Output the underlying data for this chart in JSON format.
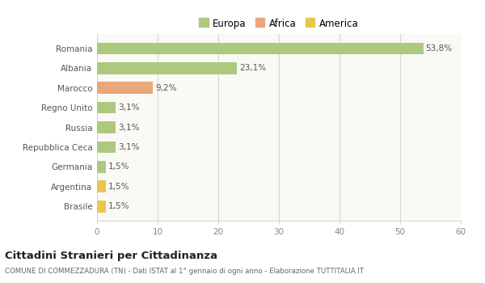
{
  "categories": [
    "Romania",
    "Albania",
    "Marocco",
    "Regno Unito",
    "Russia",
    "Repubblica Ceca",
    "Germania",
    "Argentina",
    "Brasile"
  ],
  "values": [
    53.8,
    23.1,
    9.2,
    3.1,
    3.1,
    3.1,
    1.5,
    1.5,
    1.5
  ],
  "labels": [
    "53,8%",
    "23,1%",
    "9,2%",
    "3,1%",
    "3,1%",
    "3,1%",
    "1,5%",
    "1,5%",
    "1,5%"
  ],
  "colors": [
    "#adc97e",
    "#adc97e",
    "#e8a87a",
    "#adc97e",
    "#adc97e",
    "#adc97e",
    "#adc97e",
    "#e8c84a",
    "#e8c84a"
  ],
  "legend": [
    {
      "label": "Europa",
      "color": "#adc97e"
    },
    {
      "label": "Africa",
      "color": "#e8a87a"
    },
    {
      "label": "America",
      "color": "#e8c84a"
    }
  ],
  "xlim": [
    0,
    60
  ],
  "xticks": [
    0,
    10,
    20,
    30,
    40,
    50,
    60
  ],
  "title": "Cittadini Stranieri per Cittadinanza",
  "subtitle": "COMUNE DI COMMEZZADURA (TN) - Dati ISTAT al 1° gennaio di ogni anno - Elaborazione TUTTITALIA.IT",
  "background_color": "#ffffff",
  "plot_bg_color": "#f9f9f5",
  "grid_color": "#d8d8c8"
}
